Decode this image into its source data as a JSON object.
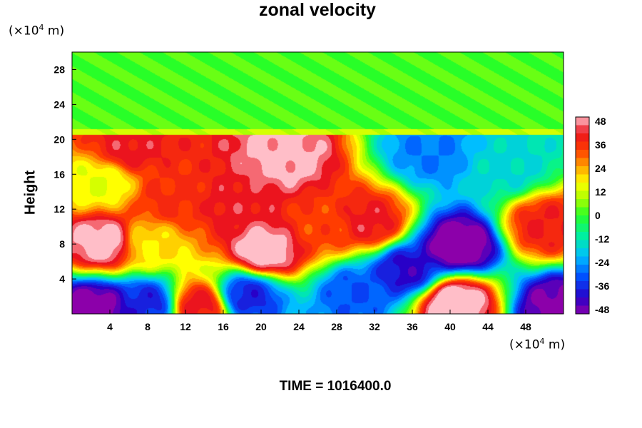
{
  "chart_data": {
    "type": "heatmap",
    "title": "zonal velocity",
    "ylabel": "Height",
    "x_unit": {
      "prefix": "(×10",
      "exp": "4",
      "suffix": " m)"
    },
    "y_unit": {
      "prefix": "(×10",
      "exp": "4",
      "suffix": " m)"
    },
    "xlim": [
      0,
      52
    ],
    "ylim": [
      0,
      30
    ],
    "x_ticks": [
      "4",
      "8",
      "12",
      "16",
      "20",
      "24",
      "28",
      "32",
      "36",
      "40",
      "44",
      "48"
    ],
    "y_ticks": [
      "4",
      "8",
      "12",
      "16",
      "20",
      "24",
      "28"
    ],
    "colorbar": {
      "range": [
        -48,
        48
      ],
      "tick_labels": [
        "48",
        "36",
        "24",
        "12",
        "0",
        "-12",
        "-24",
        "-36",
        "-48"
      ]
    },
    "footer": "TIME = 1016400.0",
    "features": [
      {
        "x": 3.5,
        "y": 8.2,
        "value": 50
      },
      {
        "x": 20.5,
        "y": 7.3,
        "value": 50
      },
      {
        "x": 22.5,
        "y": 17.8,
        "value": 48
      },
      {
        "x": 40.5,
        "y": 1.3,
        "value": 52
      },
      {
        "x": 6.0,
        "y": 19.0,
        "value": 40
      },
      {
        "x": 17.5,
        "y": 12.5,
        "value": 40
      },
      {
        "x": 31.5,
        "y": 10.5,
        "value": 40
      },
      {
        "x": 10.5,
        "y": 13.0,
        "value": 35
      },
      {
        "x": 26.5,
        "y": 10.0,
        "value": 32
      },
      {
        "x": 13.5,
        "y": 1.0,
        "value": 40
      },
      {
        "x": 41.0,
        "y": 7.8,
        "value": -52
      },
      {
        "x": 35.5,
        "y": 5.0,
        "value": -40
      },
      {
        "x": 2.5,
        "y": 0.6,
        "value": -50
      },
      {
        "x": 8.0,
        "y": 1.2,
        "value": -36
      },
      {
        "x": 18.5,
        "y": 2.0,
        "value": -36
      },
      {
        "x": 30.0,
        "y": 2.5,
        "value": -30
      },
      {
        "x": 51.5,
        "y": 0.8,
        "value": -48
      },
      {
        "x": 50.0,
        "y": 10.0,
        "value": 38
      },
      {
        "x": 38.0,
        "y": 18.5,
        "value": -26
      },
      {
        "x": 46.0,
        "y": 17.0,
        "value": -15
      },
      {
        "x": 3.0,
        "y": 15.0,
        "value": 14
      },
      {
        "x": 8.0,
        "y": 8.0,
        "value": 18
      }
    ]
  }
}
